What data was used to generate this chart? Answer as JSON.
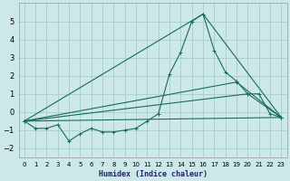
{
  "xlabel": "Humidex (Indice chaleur)",
  "bg_color": "#cce8e8",
  "grid_color": "#aacccc",
  "line_color": "#1a6b5a",
  "xlim": [
    -0.5,
    23.5
  ],
  "ylim": [
    -2.5,
    6.0
  ],
  "xticks": [
    0,
    1,
    2,
    3,
    4,
    5,
    6,
    7,
    8,
    9,
    10,
    11,
    12,
    13,
    14,
    15,
    16,
    17,
    18,
    19,
    20,
    21,
    22,
    23
  ],
  "yticks": [
    -2,
    -1,
    0,
    1,
    2,
    3,
    4,
    5
  ],
  "series1_x": [
    0,
    1,
    2,
    3,
    4,
    5,
    6,
    7,
    8,
    9,
    10,
    11,
    12,
    13,
    14,
    15,
    16,
    17,
    18,
    19,
    20,
    21,
    22,
    23
  ],
  "series1_y": [
    -0.5,
    -0.9,
    -0.9,
    -0.7,
    -1.6,
    -1.2,
    -0.9,
    -1.1,
    -1.1,
    -1.0,
    -0.9,
    -0.5,
    -0.1,
    2.1,
    3.3,
    5.0,
    5.4,
    3.4,
    2.2,
    1.7,
    1.0,
    1.0,
    -0.1,
    -0.3
  ],
  "series2_x": [
    0,
    23
  ],
  "series2_y": [
    -0.5,
    -0.3
  ],
  "series3_x": [
    0,
    20,
    23
  ],
  "series3_y": [
    -0.5,
    1.0,
    -0.3
  ],
  "series4_x": [
    0,
    19,
    23
  ],
  "series4_y": [
    -0.5,
    1.65,
    -0.3
  ],
  "series5_x": [
    0,
    16,
    23
  ],
  "series5_y": [
    -0.5,
    5.4,
    -0.3
  ]
}
